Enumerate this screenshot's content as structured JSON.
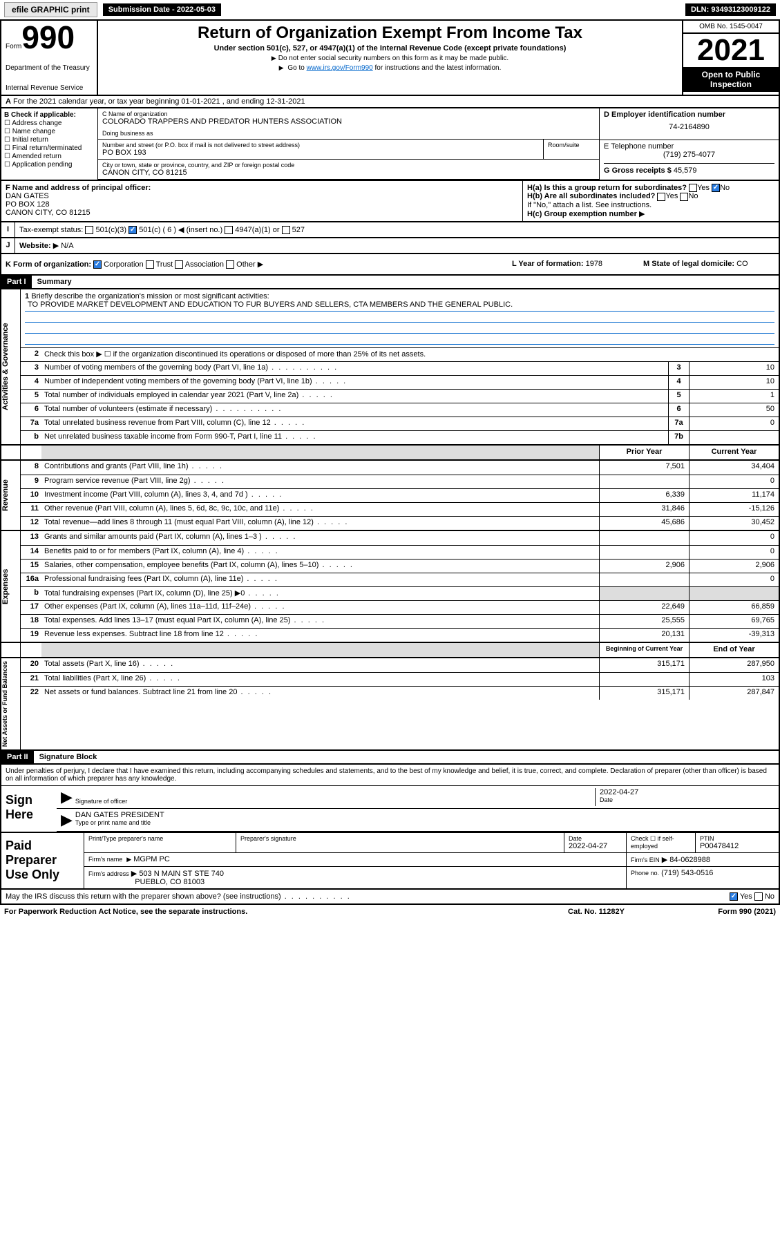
{
  "topbar": {
    "efile": "efile GRAPHIC print",
    "submission": "Submission Date - 2022-05-03",
    "dln": "DLN: 93493123009122"
  },
  "header": {
    "form_prefix": "Form",
    "form_number": "990",
    "dept": "Department of the Treasury",
    "irs": "Internal Revenue Service",
    "title": "Return of Organization Exempt From Income Tax",
    "subtitle": "Under section 501(c), 527, or 4947(a)(1) of the Internal Revenue Code (except private foundations)",
    "note1": "Do not enter social security numbers on this form as it may be made public.",
    "note2_pre": "Go to ",
    "note2_link": "www.irs.gov/Form990",
    "note2_post": " for instructions and the latest information.",
    "omb": "OMB No. 1545-0047",
    "year": "2021",
    "inspect1": "Open to Public",
    "inspect2": "Inspection"
  },
  "section_a": {
    "label": "A",
    "text": "For the 2021 calendar year, or tax year beginning 01-01-2021   , and ending 12-31-2021"
  },
  "block_b": {
    "title": "B Check if applicable:",
    "opts": [
      "Address change",
      "Name change",
      "Initial return",
      "Final return/terminated",
      "Amended return",
      "Application pending"
    ]
  },
  "block_c": {
    "name_label": "C Name of organization",
    "name": "COLORADO TRAPPERS AND PREDATOR HUNTERS ASSOCIATION",
    "dba_label": "Doing business as",
    "addr_label": "Number and street (or P.O. box if mail is not delivered to street address)",
    "addr": "PO BOX 193",
    "room_label": "Room/suite",
    "city_label": "City or town, state or province, country, and ZIP or foreign postal code",
    "city": "CANON CITY, CO  81215"
  },
  "block_d": {
    "label": "D Employer identification number",
    "ein": "74-2164890",
    "phone_label": "E Telephone number",
    "phone": "(719) 275-4077",
    "receipts_label": "G Gross receipts $",
    "receipts": "45,579"
  },
  "block_f": {
    "label": "F  Name and address of principal officer:",
    "name": "DAN GATES",
    "addr1": "PO BOX 128",
    "addr2": "CANON CITY, CO  81215"
  },
  "block_h": {
    "a_label": "H(a)  Is this a group return for subordinates?",
    "yes": "Yes",
    "no": "No",
    "b_label": "H(b)  Are all subordinates included?",
    "b_note": "If \"No,\" attach a list. See instructions.",
    "c_label": "H(c)  Group exemption number"
  },
  "block_i": {
    "label": "Tax-exempt status:",
    "o1": "501(c)(3)",
    "o2": "501(c) ( 6 )",
    "o2_note": "(insert no.)",
    "o3": "4947(a)(1) or",
    "o4": "527"
  },
  "block_j": {
    "label": "Website:",
    "val": "N/A"
  },
  "block_k": {
    "label": "K Form of organization:",
    "o1": "Corporation",
    "o2": "Trust",
    "o3": "Association",
    "o4": "Other",
    "l_label": "L Year of formation:",
    "l_val": "1978",
    "m_label": "M State of legal domicile:",
    "m_val": "CO"
  },
  "part1": {
    "num": "Part I",
    "title": "Summary"
  },
  "summary": {
    "s1": {
      "label": "Activities & Governance",
      "l1_num": "1",
      "l1": "Briefly describe the organization's mission or most significant activities:",
      "l1_mission": "TO PROVIDE MARKET DEVELOPMENT AND EDUCATION TO FUR BUYERS AND SELLERS, CTA MEMBERS AND THE GENERAL PUBLIC.",
      "l2_num": "2",
      "l2": "Check this box ▶ ☐ if the organization discontinued its operations or disposed of more than 25% of its net assets.",
      "l3_num": "3",
      "l3": "Number of voting members of the governing body (Part VI, line 1a)",
      "l3_box": "3",
      "l3_val": "10",
      "l4_num": "4",
      "l4": "Number of independent voting members of the governing body (Part VI, line 1b)",
      "l4_box": "4",
      "l4_val": "10",
      "l5_num": "5",
      "l5": "Total number of individuals employed in calendar year 2021 (Part V, line 2a)",
      "l5_box": "5",
      "l5_val": "1",
      "l6_num": "6",
      "l6": "Total number of volunteers (estimate if necessary)",
      "l6_box": "6",
      "l6_val": "50",
      "l7a_num": "7a",
      "l7a": "Total unrelated business revenue from Part VIII, column (C), line 12",
      "l7a_box": "7a",
      "l7a_val": "0",
      "l7b_num": "b",
      "l7b": "Net unrelated business taxable income from Form 990-T, Part I, line 11",
      "l7b_box": "7b",
      "l7b_val": ""
    },
    "cols": {
      "prior": "Prior Year",
      "current": "Current Year"
    },
    "s2": {
      "label": "Revenue",
      "rows": [
        {
          "n": "8",
          "t": "Contributions and grants (Part VIII, line 1h)",
          "p": "7,501",
          "c": "34,404"
        },
        {
          "n": "9",
          "t": "Program service revenue (Part VIII, line 2g)",
          "p": "",
          "c": "0"
        },
        {
          "n": "10",
          "t": "Investment income (Part VIII, column (A), lines 3, 4, and 7d )",
          "p": "6,339",
          "c": "11,174"
        },
        {
          "n": "11",
          "t": "Other revenue (Part VIII, column (A), lines 5, 6d, 8c, 9c, 10c, and 11e)",
          "p": "31,846",
          "c": "-15,126"
        },
        {
          "n": "12",
          "t": "Total revenue—add lines 8 through 11 (must equal Part VIII, column (A), line 12)",
          "p": "45,686",
          "c": "30,452"
        }
      ]
    },
    "s3": {
      "label": "Expenses",
      "rows": [
        {
          "n": "13",
          "t": "Grants and similar amounts paid (Part IX, column (A), lines 1–3 )",
          "p": "",
          "c": "0"
        },
        {
          "n": "14",
          "t": "Benefits paid to or for members (Part IX, column (A), line 4)",
          "p": "",
          "c": "0"
        },
        {
          "n": "15",
          "t": "Salaries, other compensation, employee benefits (Part IX, column (A), lines 5–10)",
          "p": "2,906",
          "c": "2,906"
        },
        {
          "n": "16a",
          "t": "Professional fundraising fees (Part IX, column (A), line 11e)",
          "p": "",
          "c": "0"
        },
        {
          "n": "b",
          "t": "Total fundraising expenses (Part IX, column (D), line 25) ▶0",
          "p": "shade",
          "c": "shade"
        },
        {
          "n": "17",
          "t": "Other expenses (Part IX, column (A), lines 11a–11d, 11f–24e)",
          "p": "22,649",
          "c": "66,859"
        },
        {
          "n": "18",
          "t": "Total expenses. Add lines 13–17 (must equal Part IX, column (A), line 25)",
          "p": "25,555",
          "c": "69,765"
        },
        {
          "n": "19",
          "t": "Revenue less expenses. Subtract line 18 from line 12",
          "p": "20,131",
          "c": "-39,313"
        }
      ]
    },
    "cols2": {
      "beg": "Beginning of Current Year",
      "end": "End of Year"
    },
    "s4": {
      "label": "Net Assets or Fund Balances",
      "rows": [
        {
          "n": "20",
          "t": "Total assets (Part X, line 16)",
          "p": "315,171",
          "c": "287,950"
        },
        {
          "n": "21",
          "t": "Total liabilities (Part X, line 26)",
          "p": "",
          "c": "103"
        },
        {
          "n": "22",
          "t": "Net assets or fund balances. Subtract line 21 from line 20",
          "p": "315,171",
          "c": "287,847"
        }
      ]
    }
  },
  "part2": {
    "num": "Part II",
    "title": "Signature Block"
  },
  "sig": {
    "declare": "Under penalties of perjury, I declare that I have examined this return, including accompanying schedules and statements, and to the best of my knowledge and belief, it is true, correct, and complete. Declaration of preparer (other than officer) is based on all information of which preparer has any knowledge.",
    "sign_here": "Sign Here",
    "sig_label": "Signature of officer",
    "date_label": "Date",
    "date": "2022-04-27",
    "name": "DAN GATES  PRESIDENT",
    "name_label": "Type or print name and title"
  },
  "prep": {
    "title": "Paid Preparer Use Only",
    "h1": "Print/Type preparer's name",
    "h2": "Preparer's signature",
    "h3": "Date",
    "h3v": "2022-04-27",
    "h4": "Check ☐ if self-employed",
    "h5": "PTIN",
    "h5v": "P00478412",
    "firm_name_l": "Firm's name",
    "firm_name": "MGPM PC",
    "firm_ein_l": "Firm's EIN",
    "firm_ein": "84-0628988",
    "firm_addr_l": "Firm's address",
    "firm_addr1": "503 N MAIN ST STE 740",
    "firm_addr2": "PUEBLO, CO  81003",
    "phone_l": "Phone no.",
    "phone": "(719) 543-0516"
  },
  "footer": {
    "discuss": "May the IRS discuss this return with the preparer shown above? (see instructions)",
    "yes": "Yes",
    "no": "No",
    "paperwork": "For Paperwork Reduction Act Notice, see the separate instructions.",
    "cat": "Cat. No. 11282Y",
    "form": "Form 990 (2021)"
  }
}
